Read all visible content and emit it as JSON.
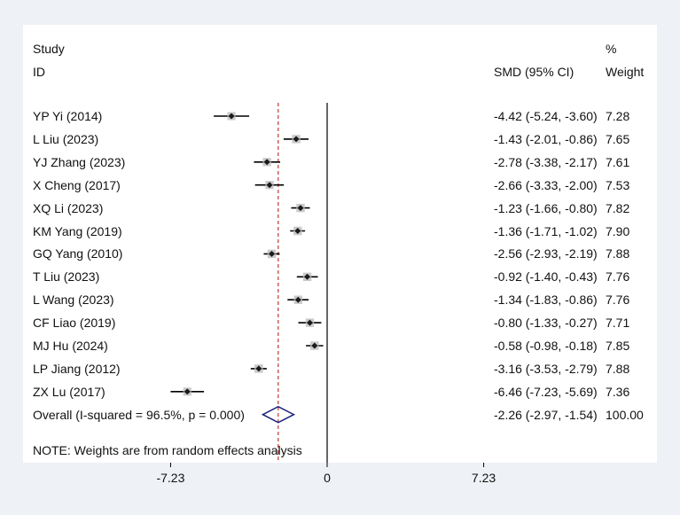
{
  "header": {
    "study_label": "Study",
    "id_label": "ID",
    "effect_label": "SMD (95% CI)",
    "weight_pct_label": "%",
    "weight_label": "Weight"
  },
  "note": "NOTE: Weights are from random effects analysis",
  "chart_data": {
    "type": "forest",
    "measure": "SMD (95% CI)",
    "x_ticks": [
      "-7.23",
      "0",
      "7.23"
    ],
    "xlim": [
      -7.23,
      7.23
    ],
    "null_line": 0,
    "overall_line": -2.26,
    "studies": [
      {
        "id": "YP Yi (2014)",
        "smd": -4.42,
        "lo": -5.24,
        "hi": -3.6,
        "ci_text": "-4.42 (-5.24, -3.60)",
        "weight": "7.28"
      },
      {
        "id": "L Liu (2023)",
        "smd": -1.43,
        "lo": -2.01,
        "hi": -0.86,
        "ci_text": "-1.43 (-2.01, -0.86)",
        "weight": "7.65"
      },
      {
        "id": "YJ Zhang (2023)",
        "smd": -2.78,
        "lo": -3.38,
        "hi": -2.17,
        "ci_text": "-2.78 (-3.38, -2.17)",
        "weight": "7.61"
      },
      {
        "id": "X Cheng (2017)",
        "smd": -2.66,
        "lo": -3.33,
        "hi": -2.0,
        "ci_text": "-2.66 (-3.33, -2.00)",
        "weight": "7.53"
      },
      {
        "id": "XQ Li (2023)",
        "smd": -1.23,
        "lo": -1.66,
        "hi": -0.8,
        "ci_text": "-1.23 (-1.66, -0.80)",
        "weight": "7.82"
      },
      {
        "id": "KM Yang (2019)",
        "smd": -1.36,
        "lo": -1.71,
        "hi": -1.02,
        "ci_text": "-1.36 (-1.71, -1.02)",
        "weight": "7.90"
      },
      {
        "id": "GQ Yang (2010)",
        "smd": -2.56,
        "lo": -2.93,
        "hi": -2.19,
        "ci_text": "-2.56 (-2.93, -2.19)",
        "weight": "7.88"
      },
      {
        "id": "T Liu (2023)",
        "smd": -0.92,
        "lo": -1.4,
        "hi": -0.43,
        "ci_text": "-0.92 (-1.40, -0.43)",
        "weight": "7.76"
      },
      {
        "id": "L Wang (2023)",
        "smd": -1.34,
        "lo": -1.83,
        "hi": -0.86,
        "ci_text": "-1.34 (-1.83, -0.86)",
        "weight": "7.76"
      },
      {
        "id": "CF Liao (2019)",
        "smd": -0.8,
        "lo": -1.33,
        "hi": -0.27,
        "ci_text": "-0.80 (-1.33, -0.27)",
        "weight": "7.71"
      },
      {
        "id": "MJ Hu (2024)",
        "smd": -0.58,
        "lo": -0.98,
        "hi": -0.18,
        "ci_text": "-0.58 (-0.98, -0.18)",
        "weight": "7.85"
      },
      {
        "id": "LP Jiang (2012)",
        "smd": -3.16,
        "lo": -3.53,
        "hi": -2.79,
        "ci_text": "-3.16 (-3.53, -2.79)",
        "weight": "7.88"
      },
      {
        "id": "ZX Lu (2017)",
        "smd": -6.46,
        "lo": -7.23,
        "hi": -5.69,
        "ci_text": "-6.46 (-7.23, -5.69)",
        "weight": "7.36"
      }
    ],
    "overall": {
      "id": "Overall  (I-squared = 96.5%, p = 0.000)",
      "smd": -2.26,
      "lo": -2.97,
      "hi": -1.54,
      "ci_text": "-2.26 (-2.97, -1.54)",
      "weight": "100.00"
    },
    "colors": {
      "line": "#000000",
      "overall_line": "#c0392b",
      "diamond": "#1a237e",
      "point": "#1a1a1a",
      "box": "#bdbdbd"
    }
  }
}
